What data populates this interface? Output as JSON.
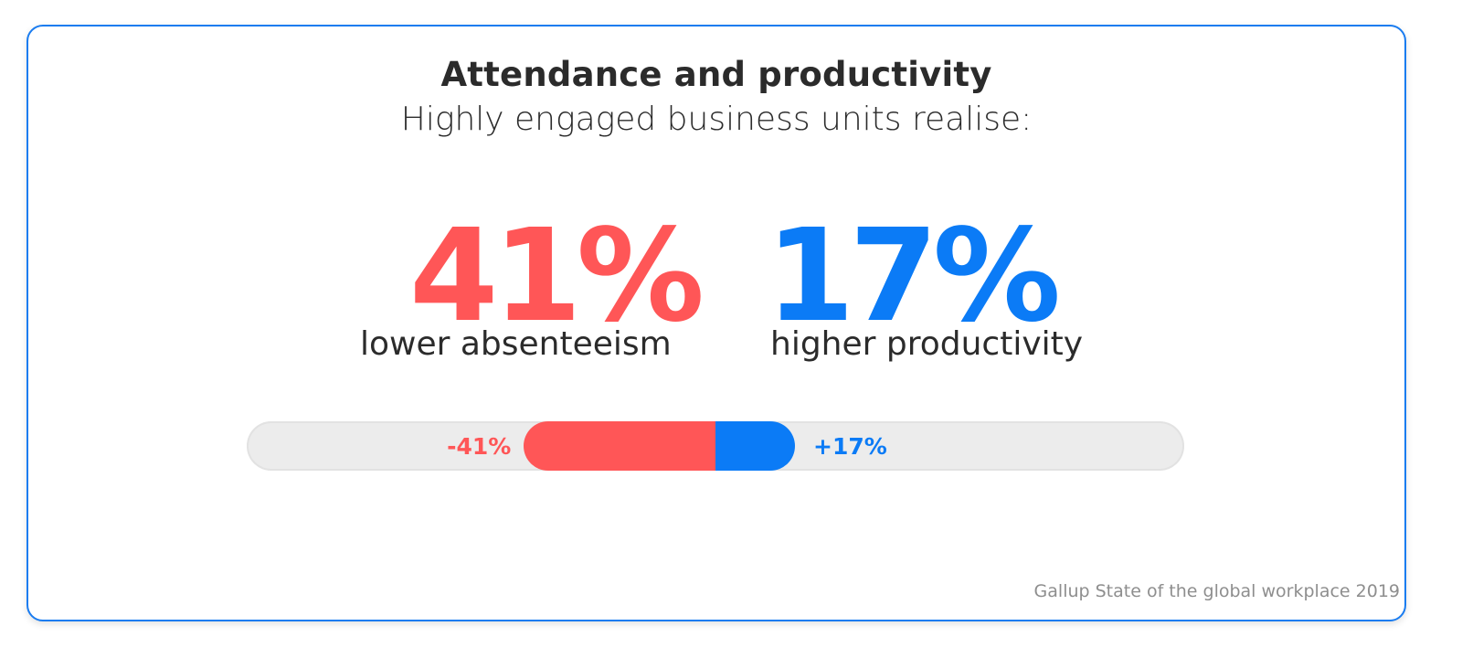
{
  "header": {
    "title": "Attendance and productivity",
    "subtitle": "Highly engaged business units realise:"
  },
  "stats": [
    {
      "value": "41%",
      "caption": "lower absenteeism",
      "color": "#ff5657"
    },
    {
      "value": "17%",
      "caption": "higher productivity",
      "color": "#0b7bf6"
    }
  ],
  "source": "Gallup State of the global workplace 2019",
  "chart_data": {
    "type": "bar",
    "orientation": "horizontal-diverging",
    "categories": [
      "lower absenteeism",
      "higher productivity"
    ],
    "values": [
      -41,
      17
    ],
    "labels": [
      "-41%",
      "+17%"
    ],
    "colors": [
      "#ff5657",
      "#0b7bf6"
    ],
    "title": "Attendance and productivity",
    "subtitle": "Highly engaged business units realise:",
    "xlim": [
      -100,
      100
    ],
    "grid": false,
    "legend": "none"
  }
}
